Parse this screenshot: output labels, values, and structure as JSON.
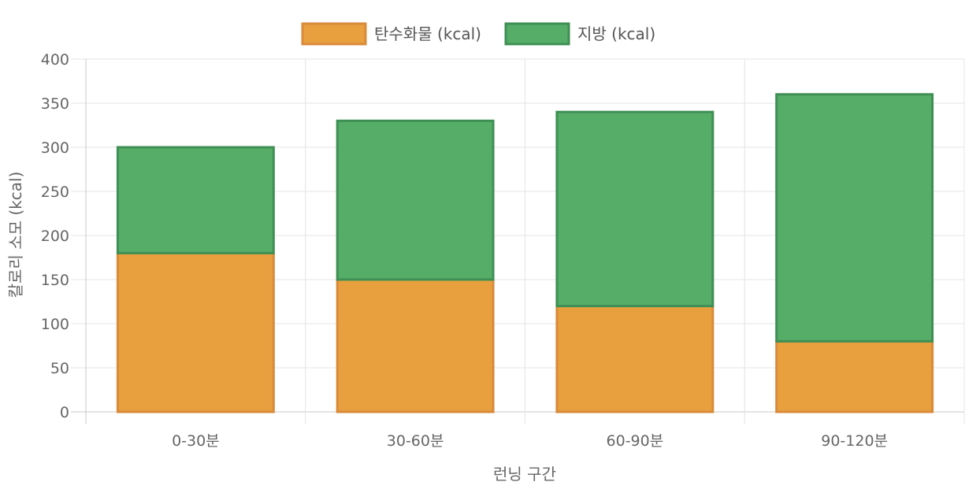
{
  "chart_data": {
    "type": "bar",
    "stacked": true,
    "categories": [
      "0-30분",
      "30-60분",
      "60-90분",
      "90-120분"
    ],
    "series": [
      {
        "name": "탄수화물 (kcal)",
        "values": [
          180,
          150,
          120,
          80
        ],
        "fill": "#e8a03e",
        "border": "#d98a3a"
      },
      {
        "name": "지방 (kcal)",
        "values": [
          120,
          180,
          220,
          280
        ],
        "fill": "#55ad68",
        "border": "#3f8f55"
      }
    ],
    "xlabel": "런닝 구간",
    "ylabel": "칼로리 소모 (kcal)",
    "ylim": [
      0,
      400
    ],
    "yticks": [
      0,
      50,
      100,
      150,
      200,
      250,
      300,
      350,
      400
    ],
    "grid": true,
    "legend_position": "top"
  }
}
